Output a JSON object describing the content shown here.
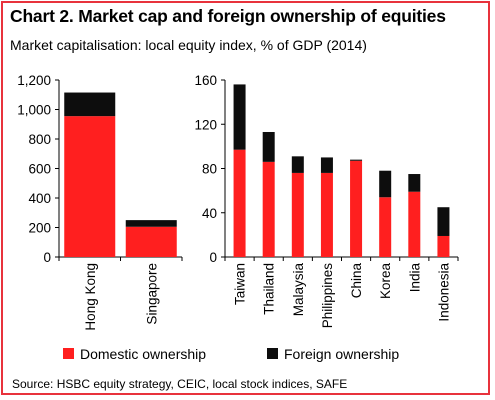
{
  "title": "Chart 2. Market cap and foreign ownership of equities",
  "subtitle": "Market capitalisation: local equity index, % of GDP (2014)",
  "source": "Source: HSBC equity strategy, CEIC, local stock indices, SAFE",
  "colors": {
    "domestic": "#ff1f1f",
    "foreign": "#0d0d0d",
    "border": "#e8323c",
    "axis": "#000000"
  },
  "chart_data": [
    {
      "type": "bar",
      "stacked": true,
      "categories": [
        "Hong Kong",
        "Singapore"
      ],
      "series": [
        {
          "name": "Domestic ownership",
          "values": [
            955,
            205
          ]
        },
        {
          "name": "Foreign ownership",
          "values": [
            160,
            45
          ]
        }
      ],
      "ylim": [
        0,
        1200
      ],
      "yticks": [
        0,
        200,
        400,
        600,
        800,
        1000,
        1200
      ],
      "ytick_labels": [
        "0",
        "200",
        "400",
        "600",
        "800",
        "1,000",
        "1,200"
      ],
      "grid": false
    },
    {
      "type": "bar",
      "stacked": true,
      "categories": [
        "Taiwan",
        "Thailand",
        "Malaysia",
        "Philippines",
        "China",
        "Korea",
        "India",
        "Indonesia"
      ],
      "series": [
        {
          "name": "Domestic ownership",
          "values": [
            97,
            86,
            76,
            76,
            87,
            54,
            59,
            19
          ]
        },
        {
          "name": "Foreign ownership",
          "values": [
            59,
            27,
            15,
            14,
            1,
            24,
            16,
            26
          ]
        }
      ],
      "ylim": [
        0,
        160
      ],
      "yticks": [
        0,
        40,
        80,
        120,
        160
      ],
      "ytick_labels": [
        "0",
        "40",
        "80",
        "120",
        "160"
      ],
      "grid": false
    }
  ],
  "legend": {
    "placement": "bottom",
    "items": [
      {
        "label": "Domestic ownership",
        "color": "#ff1f1f"
      },
      {
        "label": "Foreign ownership",
        "color": "#0d0d0d"
      }
    ]
  }
}
